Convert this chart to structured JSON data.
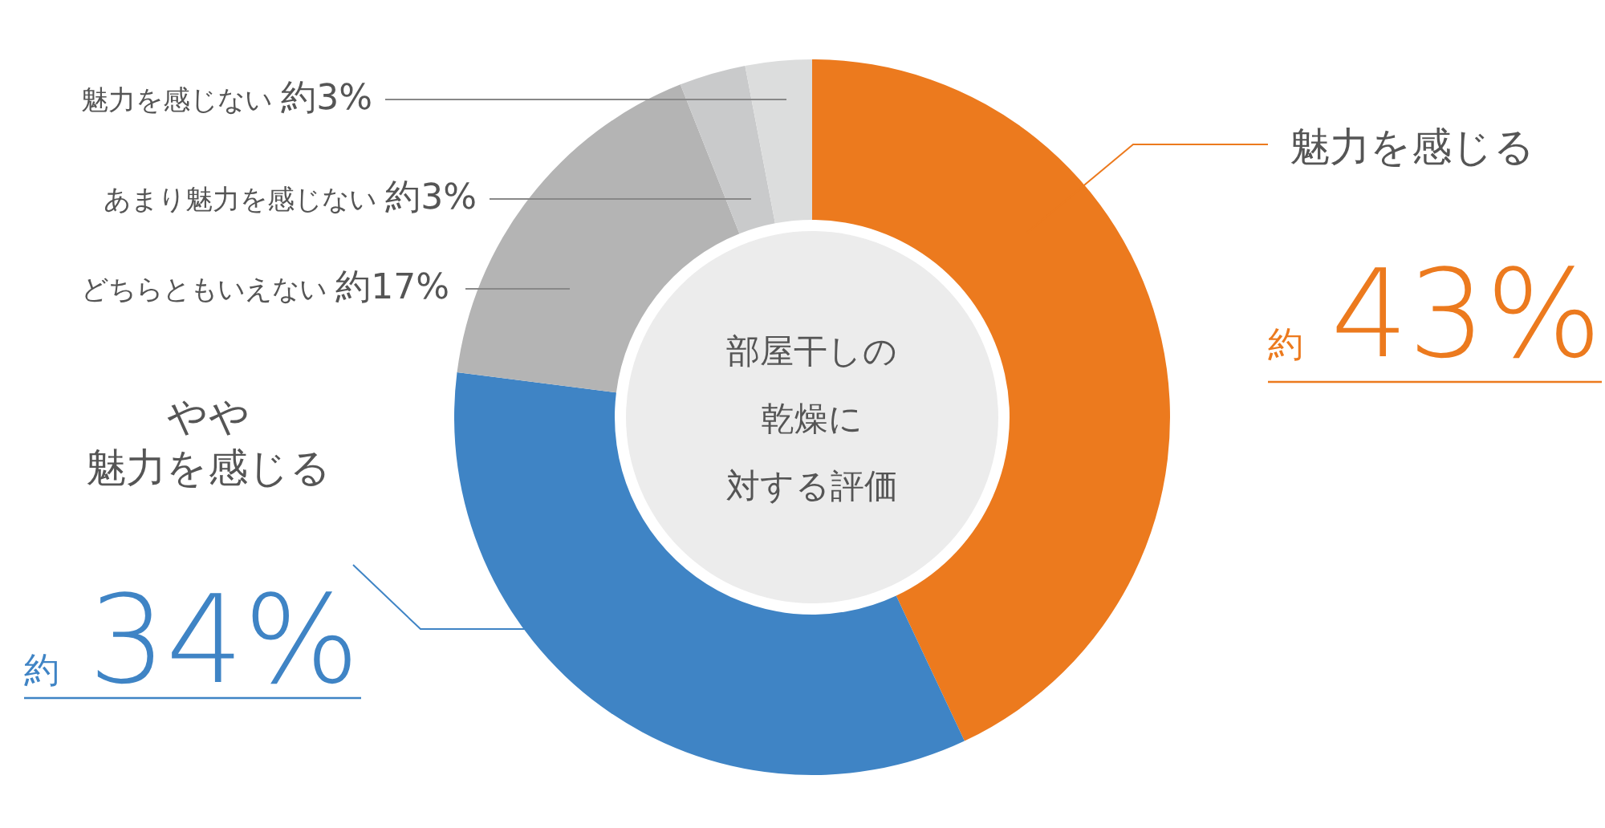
{
  "chart_data": {
    "type": "donut",
    "title": "部屋干しの乾燥に対する評価",
    "categories": [
      "魅力を感じる",
      "やや魅力を感じる",
      "どちらともいえない",
      "あまり魅力を感じない",
      "魅力を感じない"
    ],
    "values": [
      43,
      34,
      17,
      3,
      3
    ],
    "colors": [
      "#ec7a1e",
      "#3f84c5",
      "#b4b4b4",
      "#c9cacb",
      "#dcdddd"
    ],
    "value_labels": [
      "約43%",
      "約34%",
      "約17%",
      "約3%",
      "約3%"
    ]
  }
}
